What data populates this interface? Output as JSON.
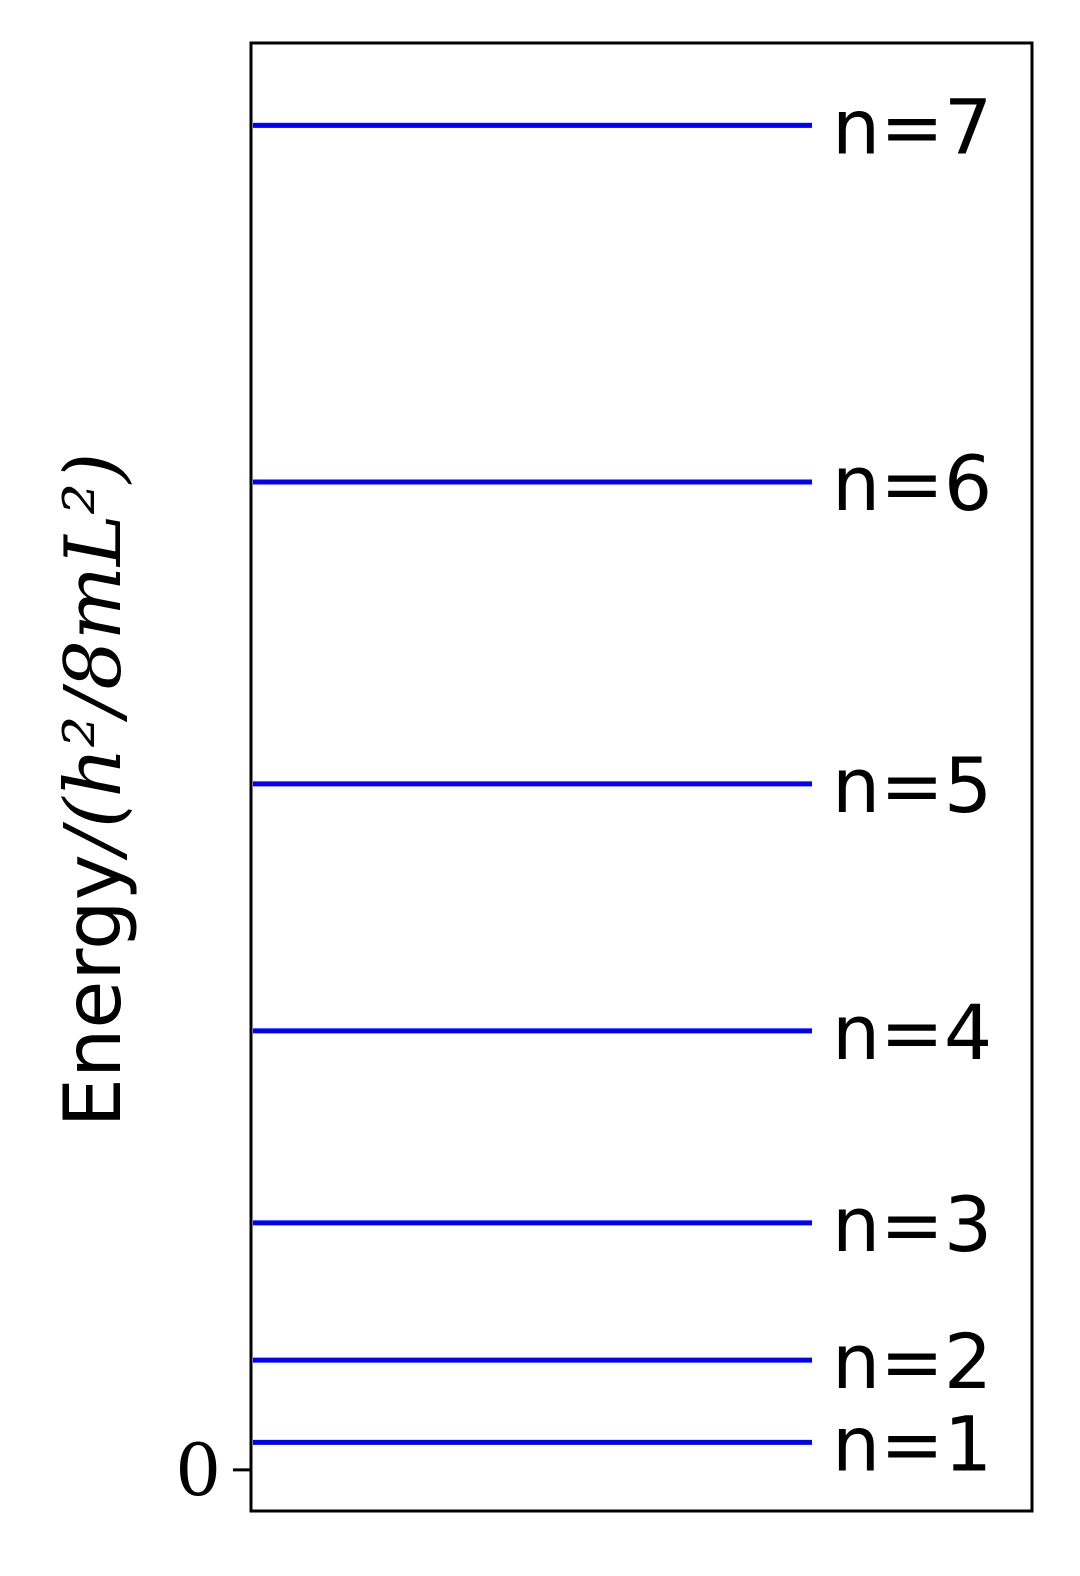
{
  "chart_data": {
    "type": "line",
    "title": "",
    "xlabel": "",
    "ylabel": {
      "prefix": "Energy",
      "unit": "/(h²/8mL²)"
    },
    "ylim": [
      -1.5,
      52
    ],
    "yticks": [
      0
    ],
    "ytick_labels": [
      "0"
    ],
    "series": [
      {
        "label": "n=1",
        "n": 1,
        "energy": 1
      },
      {
        "label": "n=2",
        "n": 2,
        "energy": 4
      },
      {
        "label": "n=3",
        "n": 3,
        "energy": 9
      },
      {
        "label": "n=4",
        "n": 4,
        "energy": 16
      },
      {
        "label": "n=5",
        "n": 5,
        "energy": 25
      },
      {
        "label": "n=6",
        "n": 6,
        "energy": 36
      },
      {
        "label": "n=7",
        "n": 7,
        "energy": 49
      }
    ],
    "line_color": "#0000ff",
    "grid": false
  }
}
